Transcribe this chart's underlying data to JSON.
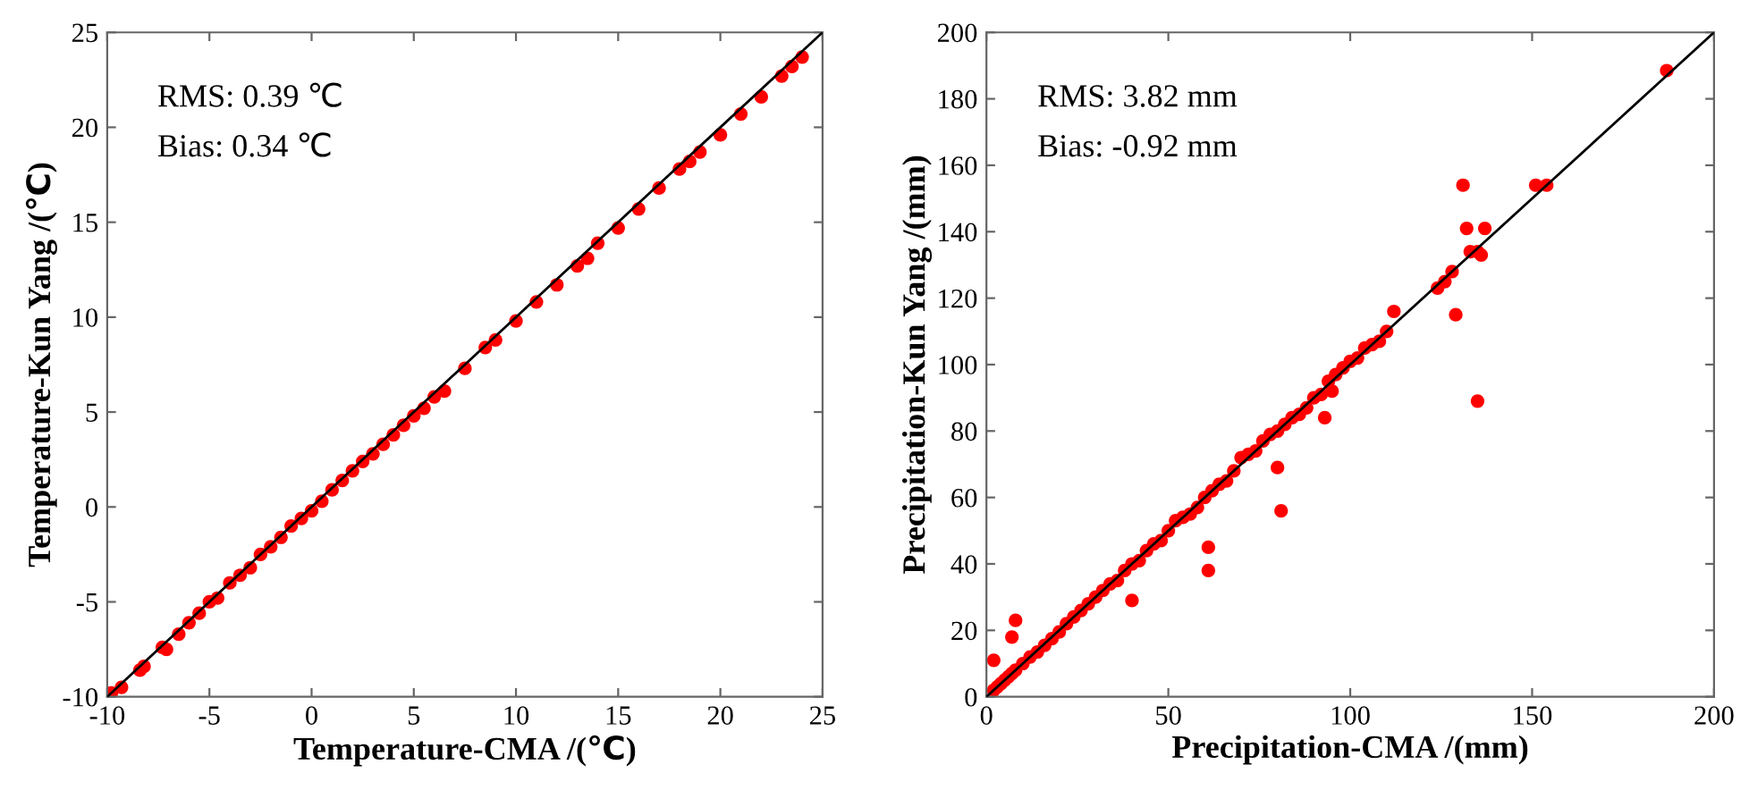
{
  "chart_data": [
    {
      "type": "scatter",
      "xlabel": "Temperature-CMA /(℃)",
      "ylabel": "Temperature-Kun Yang /(℃)",
      "annotations": [
        "RMS: 0.39 ℃",
        "Bias: 0.34 ℃"
      ],
      "xlim": [
        -10,
        25
      ],
      "ylim": [
        -10,
        25
      ],
      "xticks": [
        -10,
        -5,
        0,
        5,
        10,
        15,
        20,
        25
      ],
      "yticks": [
        -10,
        -5,
        0,
        5,
        10,
        15,
        20,
        25
      ],
      "grid": false,
      "series": [
        {
          "color": "#ff0000",
          "marker": "circle",
          "x": [
            -9.8,
            -9.3,
            -8.4,
            -8.2,
            -7.3,
            -7.1,
            -6.5,
            -6,
            -5.5,
            -5,
            -4.6,
            -4,
            -3.5,
            -3,
            -2.5,
            -2,
            -1.5,
            -1,
            -0.5,
            0,
            0.5,
            1,
            1.5,
            2,
            2.5,
            3,
            3.5,
            4,
            4.5,
            5,
            5.5,
            6,
            6.5,
            7.5,
            8.5,
            9,
            10,
            11,
            12,
            13,
            13.5,
            14,
            15,
            16,
            17,
            18,
            18.5,
            19,
            20,
            21,
            22,
            23,
            23.5,
            24
          ],
          "values": [
            -9.8,
            -9.5,
            -8.6,
            -8.4,
            -7.4,
            -7.5,
            -6.7,
            -6.1,
            -5.6,
            -5,
            -4.8,
            -4,
            -3.6,
            -3.2,
            -2.5,
            -2.1,
            -1.6,
            -1,
            -0.6,
            -0.2,
            0.3,
            0.9,
            1.4,
            1.9,
            2.4,
            2.8,
            3.3,
            3.8,
            4.3,
            4.8,
            5.2,
            5.8,
            6.1,
            7.3,
            8.4,
            8.8,
            9.8,
            10.8,
            11.7,
            12.7,
            13.1,
            13.9,
            14.7,
            15.7,
            16.8,
            17.8,
            18.2,
            18.7,
            19.6,
            20.7,
            21.6,
            22.7,
            23.2,
            23.7
          ]
        },
        {
          "type": "line",
          "color": "#000000",
          "x": [
            -10,
            25
          ],
          "values": [
            -10,
            25
          ]
        }
      ]
    },
    {
      "type": "scatter",
      "xlabel": "Precipitation-CMA /(mm)",
      "ylabel": "Precipitation-Kun Yang /(mm)",
      "annotations": [
        "RMS: 3.82 mm",
        "Bias: -0.92 mm"
      ],
      "xlim": [
        0,
        200
      ],
      "ylim": [
        0,
        200
      ],
      "xticks": [
        0,
        50,
        100,
        150,
        200
      ],
      "yticks": [
        0,
        20,
        40,
        60,
        80,
        100,
        120,
        140,
        160,
        180,
        200
      ],
      "grid": false,
      "series": [
        {
          "color": "#ff0000",
          "marker": "circle",
          "x": [
            2,
            3,
            4,
            5,
            6,
            7,
            8,
            10,
            12,
            14,
            16,
            18,
            20,
            22,
            24,
            26,
            28,
            30,
            32,
            34,
            36,
            38,
            40,
            42,
            44,
            46,
            48,
            50,
            52,
            54,
            56,
            58,
            60,
            62,
            64,
            66,
            68,
            70,
            72,
            74,
            76,
            78,
            80,
            82,
            84,
            86,
            88,
            90,
            92,
            94,
            96,
            98,
            100,
            102,
            104,
            106,
            108,
            110,
            112,
            2,
            7,
            8,
            40,
            61,
            61,
            80,
            81,
            93,
            95,
            124,
            126,
            128,
            129,
            131,
            132,
            133,
            135,
            136,
            137,
            135,
            151,
            154,
            187
          ],
          "values": [
            2,
            3,
            4,
            5,
            6,
            7,
            8,
            10,
            12,
            13.5,
            15.5,
            17.5,
            19.5,
            22,
            24,
            26,
            28,
            30,
            32,
            34,
            35,
            38,
            40,
            41,
            44,
            46,
            47,
            50,
            53,
            54,
            55,
            57,
            60,
            62,
            64,
            65,
            68,
            72,
            73,
            74,
            77,
            79,
            80,
            82,
            84,
            85,
            87,
            90,
            91,
            95,
            97,
            99,
            101,
            102,
            105,
            106,
            107,
            110,
            116,
            11,
            18,
            23,
            29,
            45,
            38,
            69,
            56,
            84,
            92,
            123,
            125,
            128,
            115,
            154,
            141,
            134,
            134,
            133,
            141,
            89,
            154,
            154,
            188.5
          ]
        },
        {
          "type": "line",
          "color": "#000000",
          "x": [
            0,
            200
          ],
          "values": [
            0,
            200
          ]
        }
      ]
    }
  ]
}
